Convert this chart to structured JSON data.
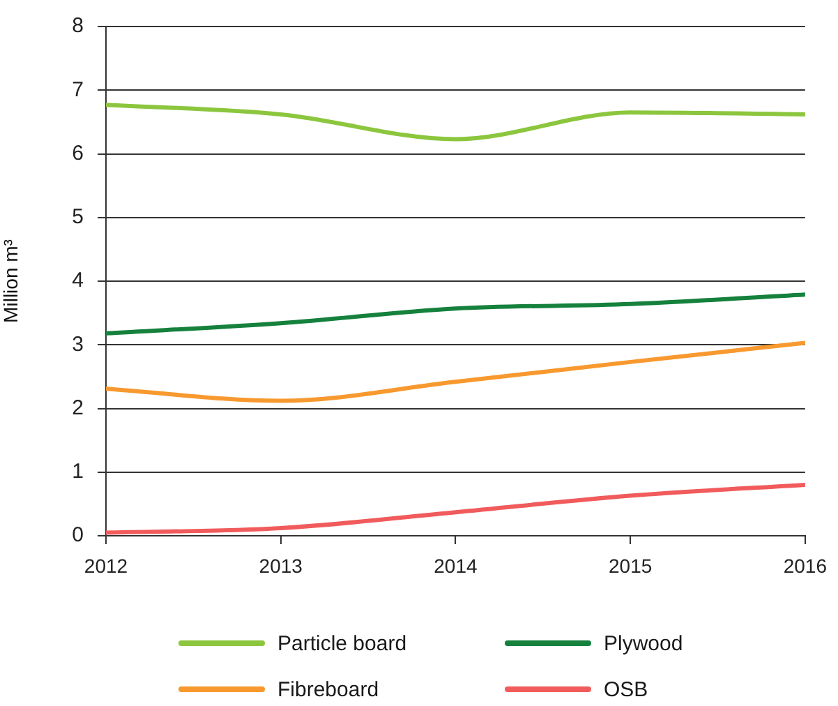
{
  "chart_data": {
    "type": "line",
    "ylabel": "Million m³",
    "x": [
      2012,
      2013,
      2014,
      2015,
      2016
    ],
    "series": [
      {
        "name": "Particle board",
        "color": "#8cc63e",
        "values": [
          6.77,
          6.62,
          6.23,
          6.65,
          6.62
        ]
      },
      {
        "name": "Plywood",
        "color": "#15813d",
        "values": [
          3.18,
          3.34,
          3.57,
          3.64,
          3.79
        ]
      },
      {
        "name": "Fibreboard",
        "color": "#f8992f",
        "values": [
          2.31,
          2.12,
          2.42,
          2.73,
          3.03
        ]
      },
      {
        "name": "OSB",
        "color": "#f15b5c",
        "values": [
          0.05,
          0.12,
          0.37,
          0.63,
          0.8
        ]
      }
    ],
    "xlim": [
      2012,
      2016
    ],
    "xticks": [
      2012,
      2013,
      2014,
      2015,
      2016
    ],
    "ylim": [
      0,
      8
    ],
    "yticks": [
      0,
      1,
      2,
      3,
      4,
      5,
      6,
      7,
      8
    ],
    "grid": "y",
    "legend": "bottom",
    "marker": "none",
    "line_style": "solid"
  }
}
